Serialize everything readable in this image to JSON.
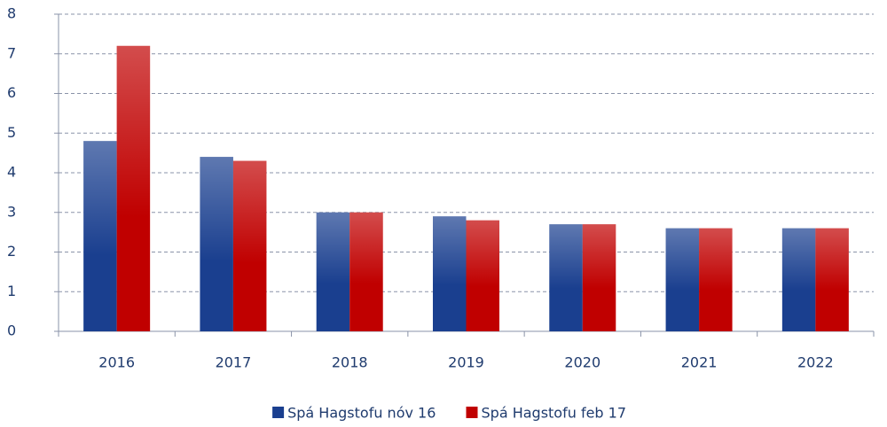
{
  "chart_data": {
    "type": "bar",
    "categories": [
      "2016",
      "2017",
      "2018",
      "2019",
      "2020",
      "2021",
      "2022"
    ],
    "series": [
      {
        "name": "Spá Hagstofu nóv 16",
        "color": "#1a3f8f",
        "values": [
          4.8,
          4.4,
          3.0,
          2.9,
          2.7,
          2.6,
          2.6
        ]
      },
      {
        "name": "Spá Hagstofu feb 17",
        "color": "#c00000",
        "values": [
          7.2,
          4.3,
          3.0,
          2.8,
          2.7,
          2.6,
          2.6
        ]
      }
    ],
    "ylim": [
      0,
      8
    ],
    "yticks": [
      0,
      1,
      2,
      3,
      4,
      5,
      6,
      7,
      8
    ],
    "grid": true,
    "legend": "bottom"
  }
}
